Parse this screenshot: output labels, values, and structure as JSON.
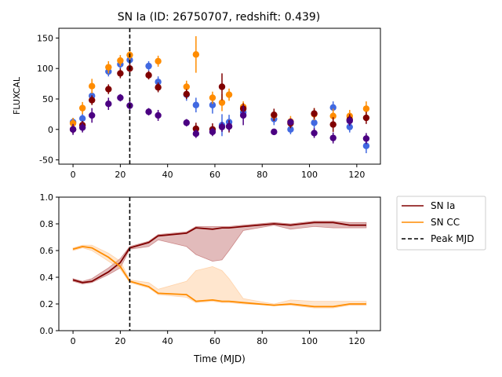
{
  "figure_title": "SN Ia (ID: 26750707, redshift: 0.439)",
  "chart_data": [
    {
      "type": "scatter",
      "panel": "top",
      "title": "SN Ia (ID: 26750707, redshift: 0.439)",
      "xlabel": "",
      "ylabel": "FLUXCAL",
      "xlim": [
        -6,
        130
      ],
      "ylim": [
        -57,
        166
      ],
      "xticks": [
        0,
        20,
        40,
        60,
        80,
        100,
        120
      ],
      "yticks": [
        -50,
        0,
        50,
        100,
        150
      ],
      "grid": false,
      "peak_mjd": 24,
      "series": [
        {
          "color": "#4169e1",
          "x": [
            0,
            4,
            8,
            15,
            20,
            24,
            32,
            36,
            48,
            52,
            59,
            63,
            66,
            72,
            85,
            92,
            102,
            110,
            117,
            124
          ],
          "y": [
            12,
            18,
            55,
            95,
            107,
            114,
            104,
            78,
            57,
            40,
            40,
            7,
            12,
            28,
            17,
            0,
            11,
            36,
            4,
            -27
          ],
          "err": [
            7,
            8,
            8,
            8,
            8,
            9,
            8,
            9,
            10,
            12,
            14,
            18,
            12,
            10,
            10,
            8,
            10,
            10,
            9,
            12
          ]
        },
        {
          "color": "#ff8c00",
          "x": [
            0,
            4,
            8,
            15,
            20,
            24,
            36,
            48,
            52,
            59,
            63,
            66,
            72,
            85,
            92,
            102,
            110,
            117,
            124
          ],
          "y": [
            10,
            35,
            71,
            102,
            113,
            122,
            112,
            70,
            123,
            52,
            44,
            57,
            37,
            23,
            13,
            25,
            22,
            22,
            34
          ],
          "err": [
            9,
            10,
            12,
            10,
            9,
            9,
            9,
            10,
            30,
            10,
            14,
            10,
            9,
            9,
            9,
            10,
            12,
            10,
            12
          ]
        },
        {
          "color": "#800000",
          "x": [
            0,
            4,
            8,
            15,
            20,
            24,
            32,
            36,
            48,
            52,
            59,
            63,
            66,
            72,
            85,
            92,
            102,
            110,
            117,
            124
          ],
          "y": [
            0,
            7,
            48,
            66,
            92,
            100,
            89,
            69,
            58,
            1,
            0,
            70,
            5,
            34,
            24,
            10,
            26,
            8,
            16,
            19
          ],
          "err": [
            7,
            7,
            8,
            8,
            8,
            8,
            7,
            8,
            8,
            10,
            10,
            22,
            10,
            9,
            10,
            8,
            9,
            12,
            9,
            10
          ]
        },
        {
          "color": "#4b0082",
          "x": [
            0,
            4,
            8,
            15,
            20,
            24,
            32,
            36,
            48,
            52,
            59,
            63,
            66,
            72,
            85,
            92,
            102,
            110,
            117,
            124
          ],
          "y": [
            0,
            3,
            23,
            42,
            52,
            39,
            29,
            23,
            11,
            -7,
            -4,
            4,
            5,
            23,
            -4,
            12,
            -6,
            -14,
            14,
            -15
          ],
          "err": [
            9,
            8,
            12,
            10,
            6,
            9,
            6,
            9,
            6,
            7,
            7,
            8,
            8,
            16,
            5,
            5,
            8,
            9,
            8,
            9
          ]
        }
      ]
    },
    {
      "type": "line",
      "panel": "bottom",
      "xlabel": "Time (MJD)",
      "ylabel": "",
      "xlim": [
        -6,
        130
      ],
      "ylim": [
        0,
        1
      ],
      "xticks": [
        0,
        20,
        40,
        60,
        80,
        100,
        120
      ],
      "yticks": [
        0.0,
        0.2,
        0.4,
        0.6,
        0.8,
        1.0
      ],
      "ytick_labels": [
        "0.0",
        "0.2",
        "0.4",
        "0.6",
        "0.8",
        "1.0"
      ],
      "grid": false,
      "legend_position": "outside top-right",
      "peak_mjd": 24,
      "x": [
        0,
        4,
        8,
        15,
        20,
        24,
        32,
        36,
        48,
        52,
        59,
        63,
        66,
        72,
        85,
        92,
        102,
        110,
        117,
        124
      ],
      "series": [
        {
          "name": "SN Ia",
          "color": "#800000",
          "band_color": "#a52a2a",
          "values": [
            0.38,
            0.36,
            0.37,
            0.44,
            0.51,
            0.62,
            0.66,
            0.71,
            0.73,
            0.77,
            0.76,
            0.77,
            0.77,
            0.78,
            0.8,
            0.79,
            0.81,
            0.81,
            0.79,
            0.79
          ],
          "upper": [
            0.39,
            0.37,
            0.39,
            0.47,
            0.54,
            0.63,
            0.67,
            0.72,
            0.74,
            0.78,
            0.78,
            0.78,
            0.78,
            0.79,
            0.81,
            0.8,
            0.82,
            0.82,
            0.81,
            0.81
          ],
          "lower": [
            0.37,
            0.35,
            0.36,
            0.42,
            0.47,
            0.61,
            0.63,
            0.68,
            0.63,
            0.57,
            0.52,
            0.53,
            0.6,
            0.75,
            0.79,
            0.76,
            0.78,
            0.77,
            0.77,
            0.77
          ]
        },
        {
          "name": "SN CC",
          "color": "#ff8c00",
          "band_color": "#ffb066",
          "values": [
            0.61,
            0.63,
            0.62,
            0.55,
            0.48,
            0.37,
            0.33,
            0.28,
            0.27,
            0.22,
            0.23,
            0.22,
            0.22,
            0.21,
            0.19,
            0.2,
            0.18,
            0.18,
            0.2,
            0.2
          ],
          "upper": [
            0.62,
            0.64,
            0.64,
            0.58,
            0.52,
            0.38,
            0.36,
            0.31,
            0.37,
            0.45,
            0.48,
            0.45,
            0.39,
            0.24,
            0.2,
            0.23,
            0.22,
            0.22,
            0.22,
            0.22
          ],
          "lower": [
            0.6,
            0.62,
            0.6,
            0.52,
            0.46,
            0.36,
            0.32,
            0.27,
            0.25,
            0.21,
            0.22,
            0.21,
            0.21,
            0.2,
            0.19,
            0.19,
            0.17,
            0.17,
            0.19,
            0.19
          ]
        }
      ],
      "reference_line": {
        "name": "Peak MJD",
        "color": "#000000",
        "style": "dashed",
        "x": 24
      }
    }
  ],
  "legend": {
    "items": [
      {
        "label": "SN Ia",
        "color": "#800000",
        "style": "solid"
      },
      {
        "label": "SN CC",
        "color": "#ff8c00",
        "style": "solid"
      },
      {
        "label": "Peak MJD",
        "color": "#000000",
        "style": "dashed"
      }
    ]
  }
}
